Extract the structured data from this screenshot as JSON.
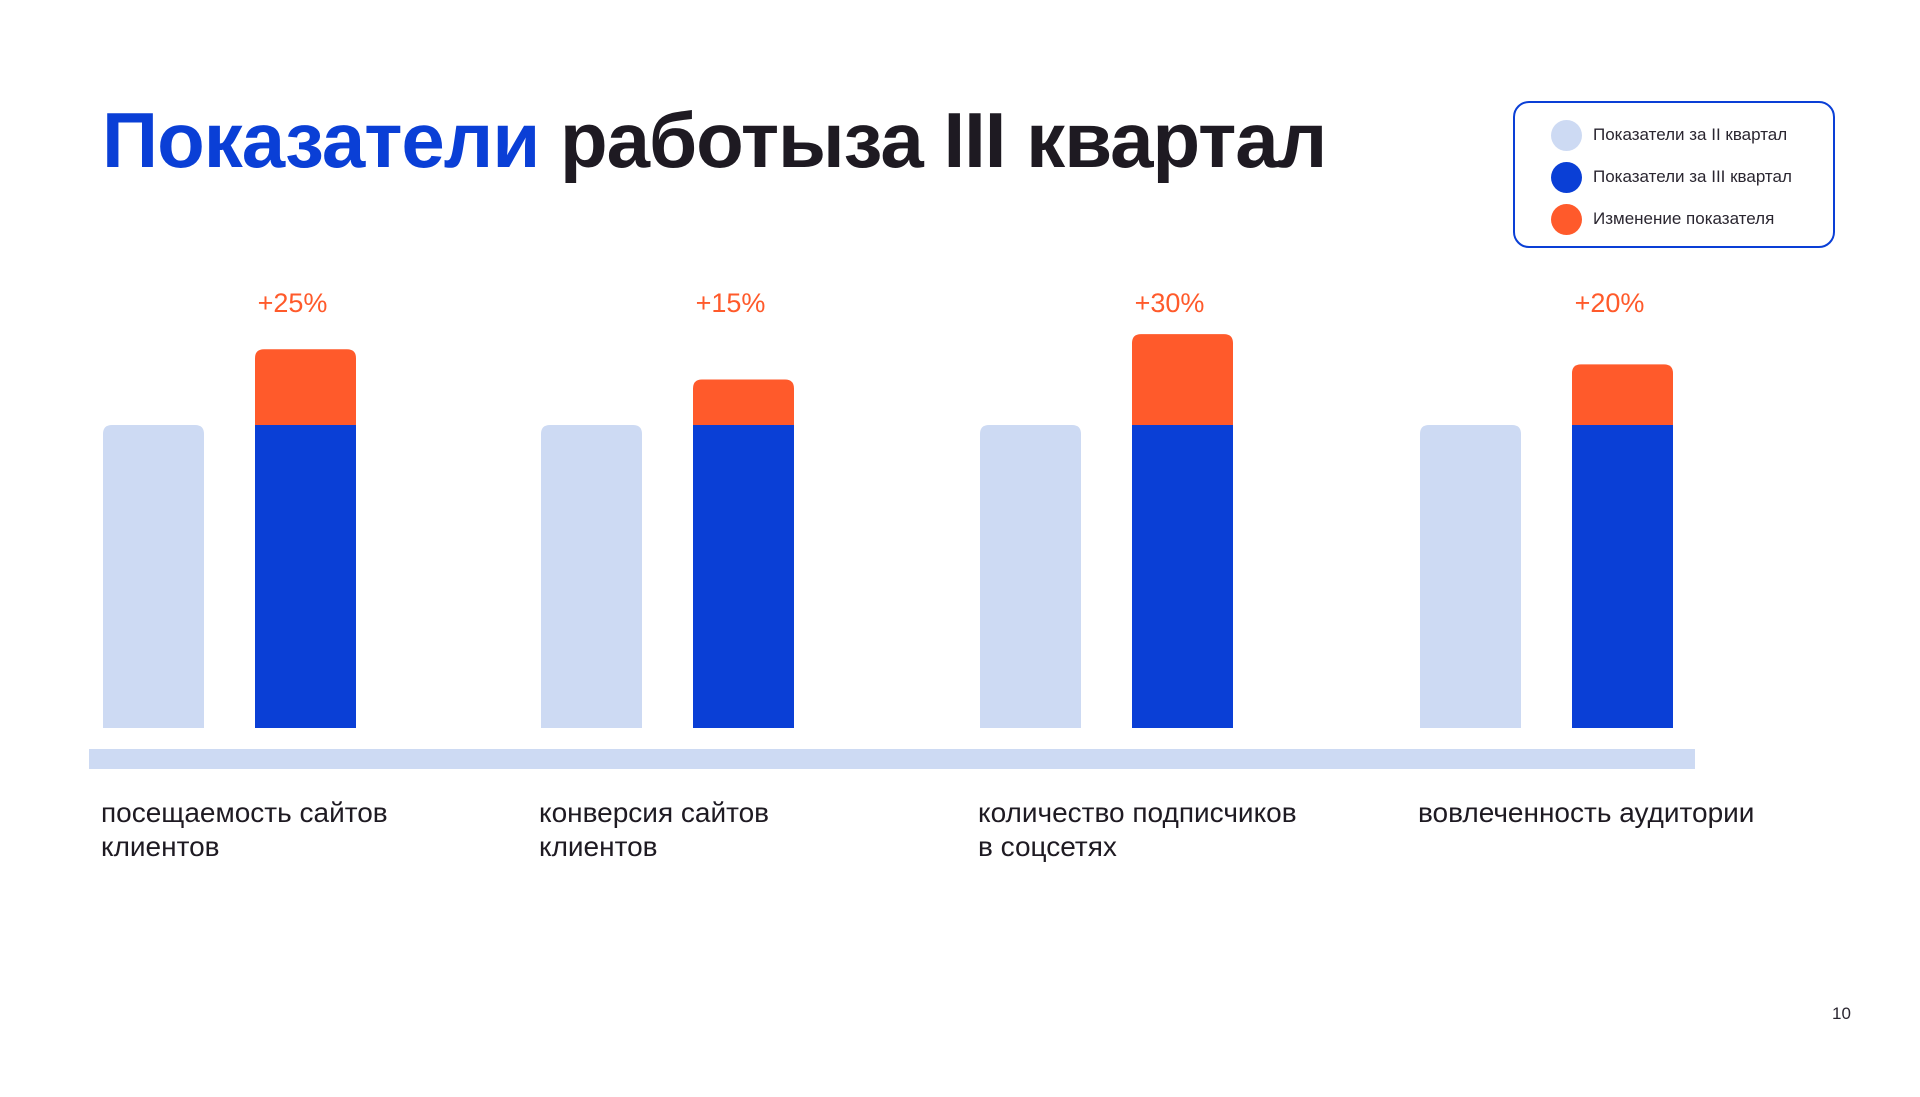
{
  "title": {
    "accent": "Показатели",
    "rest": "работыза III квартал"
  },
  "legend": {
    "items": [
      {
        "label": "Показатели за II квартал",
        "color": "#cddaf3"
      },
      {
        "label": "Показатели за III квартал",
        "color": "#0a3fd6"
      },
      {
        "label": "Изменение показателя",
        "color": "#ff5a2b"
      }
    ]
  },
  "chart_data": {
    "type": "bar",
    "stacked_pairs": true,
    "categories": [
      "посещаемость сайтов\nклиентов",
      "конверсия сайтов\nклиентов",
      "количество подписчиков\nв соцсетях",
      "вовлеченность аудитории"
    ],
    "series": [
      {
        "name": "Показатели за II квартал",
        "values": [
          100,
          100,
          100,
          100
        ],
        "color": "#cddaf3"
      },
      {
        "name": "Показатели за III квартал",
        "values": [
          100,
          100,
          100,
          100
        ],
        "color": "#0a3fd6"
      },
      {
        "name": "Изменение показателя",
        "values": [
          25,
          15,
          30,
          20
        ],
        "color": "#ff5a2b"
      }
    ],
    "change_labels": [
      "+25%",
      "+15%",
      "+30%",
      "+20%"
    ],
    "label_color": "#ff5a2b",
    "baseline_color": "#cddaf3",
    "ylim": [
      0,
      130
    ],
    "grid": false,
    "legend_position": "top-right"
  },
  "page_number": "10"
}
